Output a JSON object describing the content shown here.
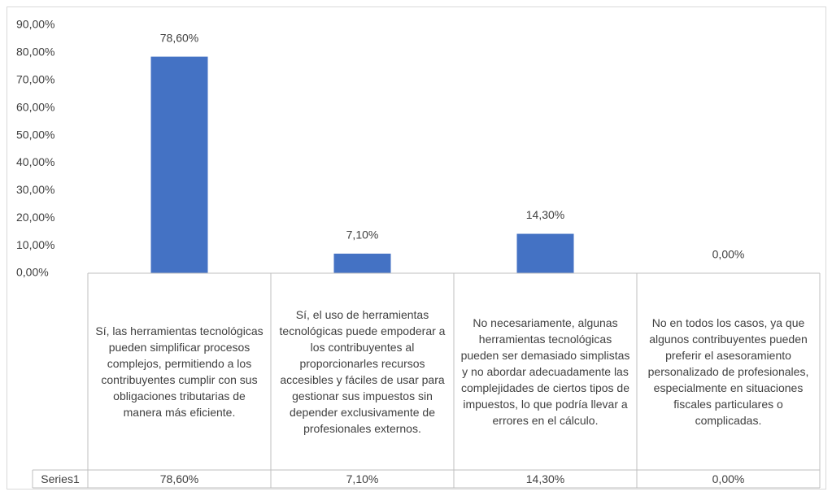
{
  "chart_data": {
    "type": "bar",
    "categories": [
      "Sí, las herramientas tecnológicas pueden simplificar procesos complejos, permitiendo a los contribuyentes cumplir con sus obligaciones tributarias de manera más eficiente.",
      "Sí, el uso de herramientas tecnológicas puede empoderar a los contribuyentes al proporcionarles recursos accesibles y fáciles de usar para gestionar sus impuestos sin depender exclusivamente de profesionales externos.",
      "No necesariamente, algunas herramientas tecnológicas pueden ser demasiado simplistas y no abordar adecuadamente las complejidades de ciertos tipos de impuestos, lo que podría llevar a errores en el cálculo.",
      "No en todos los casos, ya que algunos contribuyentes pueden preferir el asesoramiento personalizado de profesionales, especialmente en situaciones fiscales particulares o complicadas."
    ],
    "series": [
      {
        "name": "Series1",
        "color": "#4472c4",
        "values": [
          78.6,
          7.1,
          14.3,
          0
        ],
        "value_labels": [
          "78,60%",
          "7,10%",
          "14,30%",
          "0,00%"
        ]
      }
    ],
    "ylim": [
      0,
      90
    ],
    "yticks": [
      {
        "value": 0,
        "label": "0,00%"
      },
      {
        "value": 10,
        "label": "10,00%"
      },
      {
        "value": 20,
        "label": "20,00%"
      },
      {
        "value": 30,
        "label": "30,00%"
      },
      {
        "value": 40,
        "label": "40,00%"
      },
      {
        "value": 50,
        "label": "50,00%"
      },
      {
        "value": 60,
        "label": "60,00%"
      },
      {
        "value": 70,
        "label": "70,00%"
      },
      {
        "value": 80,
        "label": "80,00%"
      },
      {
        "value": 90,
        "label": "90,00%"
      }
    ],
    "grid": false,
    "data_table": true
  }
}
